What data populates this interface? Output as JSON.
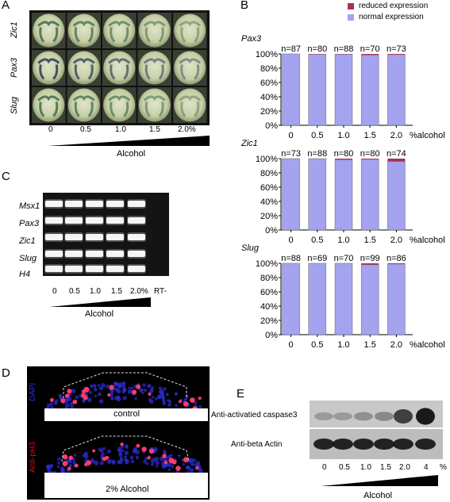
{
  "panels": {
    "A": {
      "letter": "A",
      "rows": [
        "Zic1",
        "Pax3",
        "Slug"
      ],
      "conc": [
        "0",
        "0.5",
        "1.0",
        "1.5",
        "2.0%"
      ],
      "xlabel": "Alcohol"
    },
    "B": {
      "letter": "B",
      "legend": {
        "reduced": "reduced expression",
        "normal": "normal expression"
      },
      "colors": {
        "normal": "#a3a3f0",
        "reduced": "#a8325a"
      }
    },
    "C": {
      "letter": "C",
      "rows": [
        "Msx1",
        "Pax3",
        "Zic1",
        "Slug",
        "H4"
      ],
      "conc": [
        "0",
        "0.5",
        "1.0",
        "1.5",
        "2.0%",
        "RT-"
      ],
      "xlabel": "Alcohol"
    },
    "D": {
      "letter": "D",
      "dapi": "DAPI",
      "antiph3": "Anti-pH3",
      "control": "control",
      "alcohol": "2% Alcohol"
    },
    "E": {
      "letter": "E",
      "caspase": "Anti-activatied caspase3",
      "actin": "Anti-beta Actin",
      "conc": [
        "0",
        "0.5",
        "1.0",
        "1.5",
        "2.0",
        "4",
        "%"
      ],
      "xlabel": "Alcohol"
    }
  },
  "chart_data": [
    {
      "type": "bar",
      "gene": "Pax3",
      "categories": [
        "0",
        "0.5",
        "1.0",
        "1.5",
        "2.0"
      ],
      "counts": [
        "n=87",
        "n=80",
        "n=88",
        "n=70",
        "n=73"
      ],
      "series": [
        {
          "name": "normal expression",
          "values": [
            100,
            99.5,
            99.5,
            98.5,
            99
          ]
        },
        {
          "name": "reduced expression",
          "values": [
            0,
            0.5,
            0.5,
            1.5,
            1
          ]
        }
      ],
      "yticks": [
        "0%",
        "20%",
        "40%",
        "60%",
        "80%",
        "100%"
      ],
      "xlabel": "%alcohol",
      "ylim": [
        0,
        100
      ]
    },
    {
      "type": "bar",
      "gene": "Zic1",
      "categories": [
        "0",
        "0.5",
        "1.0",
        "1.5",
        "2.0"
      ],
      "counts": [
        "n=73",
        "n=88",
        "n=80",
        "n=80",
        "n=74"
      ],
      "series": [
        {
          "name": "normal expression",
          "values": [
            100,
            100,
            98.5,
            99,
            96
          ]
        },
        {
          "name": "reduced expression",
          "values": [
            0,
            0,
            1.5,
            1,
            4
          ]
        }
      ],
      "yticks": [
        "0%",
        "20%",
        "40%",
        "60%",
        "80%",
        "100%"
      ],
      "xlabel": "%alcohol",
      "ylim": [
        0,
        100
      ]
    },
    {
      "type": "bar",
      "gene": "Slug",
      "categories": [
        "0",
        "0.5",
        "1.0",
        "1.5",
        "2.0"
      ],
      "counts": [
        "n=88",
        "n=69",
        "n=70",
        "n=99",
        "n=86"
      ],
      "series": [
        {
          "name": "normal expression",
          "values": [
            100,
            100,
            100,
            98,
            99
          ]
        },
        {
          "name": "reduced expression",
          "values": [
            0,
            0,
            0,
            2,
            1
          ]
        }
      ],
      "yticks": [
        "0%",
        "20%",
        "40%",
        "60%",
        "80%",
        "100%"
      ],
      "xlabel": "%alcohol",
      "ylim": [
        0,
        100
      ]
    }
  ]
}
